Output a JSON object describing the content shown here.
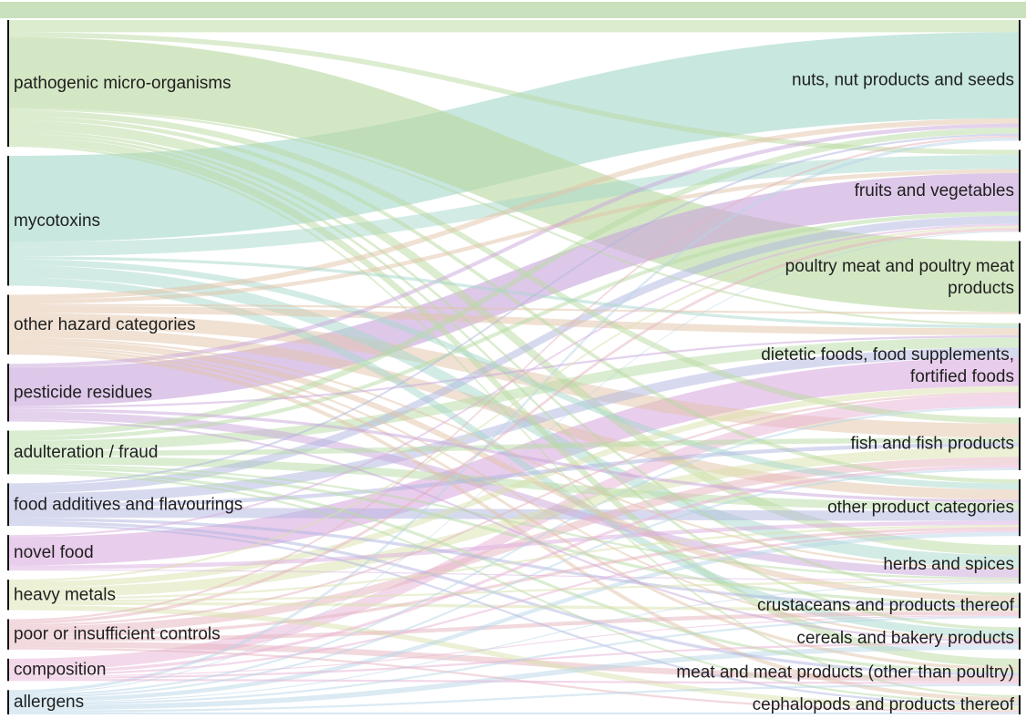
{
  "chart_data": {
    "type": "sankey",
    "left_nodes": [
      {
        "id": "pmo",
        "label": "pathogenic micro-organisms",
        "color": "#b9d9a0"
      },
      {
        "id": "myc",
        "label": "mycotoxins",
        "color": "#a6d8cb"
      },
      {
        "id": "oth",
        "label": "other hazard categories",
        "color": "#e2c4a8"
      },
      {
        "id": "pes",
        "label": "pesticide residues",
        "color": "#c9a6dc"
      },
      {
        "id": "adu",
        "label": "adulteration / fraud",
        "color": "#b5dca4"
      },
      {
        "id": "fad",
        "label": "food additives and flavourings",
        "color": "#b0b6e0"
      },
      {
        "id": "nov",
        "label": "novel food",
        "color": "#dcaee0"
      },
      {
        "id": "hvm",
        "label": "heavy metals",
        "color": "#d9e1ac"
      },
      {
        "id": "poc",
        "label": "poor or insufficient controls",
        "color": "#e6b3be"
      },
      {
        "id": "com",
        "label": "composition",
        "color": "#e8b2d6"
      },
      {
        "id": "all",
        "label": "allergens",
        "color": "#b8d6e8"
      }
    ],
    "right_nodes": [
      {
        "id": "nut",
        "label_lines": [
          "nuts, nut products and seeds"
        ],
        "color": "#a6d8cb"
      },
      {
        "id": "fru",
        "label_lines": [
          "fruits and vegetables"
        ],
        "color": "#c4acdf"
      },
      {
        "id": "pou",
        "label_lines": [
          "poultry meat and poultry meat",
          "products"
        ],
        "color": "#bfdca7"
      },
      {
        "id": "die",
        "label_lines": [
          "dietetic foods, food supplements,",
          "fortified foods"
        ],
        "color": "#dcb0de"
      },
      {
        "id": "fis",
        "label_lines": [
          "fish and fish products"
        ],
        "color": "#e2c3a6"
      },
      {
        "id": "opc",
        "label_lines": [
          "other product categories"
        ],
        "color": "#b5c6e2"
      },
      {
        "id": "her",
        "label_lines": [
          "herbs and spices"
        ],
        "color": "#bfe0c8"
      },
      {
        "id": "cru",
        "label_lines": [
          "crustaceans and products thereof"
        ],
        "color": "#e2c8a6"
      },
      {
        "id": "cer",
        "label_lines": [
          "cereals and bakery products"
        ],
        "color": "#bfe0d0"
      },
      {
        "id": "mea",
        "label_lines": [
          "meat and meat products (other than poultry)"
        ],
        "color": "#dcc0c8"
      },
      {
        "id": "cep",
        "label_lines": [
          "cephalopods and products thereof"
        ],
        "color": "#e0c8b0"
      }
    ],
    "flows": [
      [
        "pmo",
        "pou",
        70
      ],
      [
        "pmo",
        "nut",
        12
      ],
      [
        "pmo",
        "her",
        10
      ],
      [
        "pmo",
        "fis",
        6
      ],
      [
        "pmo",
        "mea",
        8
      ],
      [
        "pmo",
        "fru",
        5
      ],
      [
        "pmo",
        "opc",
        4
      ],
      [
        "pmo",
        "cer",
        3
      ],
      [
        "pmo",
        "cru",
        3
      ],
      [
        "pmo",
        "die",
        2
      ],
      [
        "pmo",
        "cep",
        2
      ],
      [
        "myc",
        "nut",
        85
      ],
      [
        "myc",
        "fru",
        14
      ],
      [
        "myc",
        "her",
        12
      ],
      [
        "myc",
        "cer",
        8
      ],
      [
        "myc",
        "opc",
        6
      ],
      [
        "myc",
        "die",
        3
      ],
      [
        "oth",
        "fis",
        14
      ],
      [
        "oth",
        "opc",
        10
      ],
      [
        "oth",
        "die",
        7
      ],
      [
        "oth",
        "cru",
        6
      ],
      [
        "oth",
        "nut",
        5
      ],
      [
        "oth",
        "fru",
        4
      ],
      [
        "oth",
        "cep",
        4
      ],
      [
        "oth",
        "mea",
        3
      ],
      [
        "oth",
        "her",
        2
      ],
      [
        "oth",
        "pou",
        2
      ],
      [
        "oth",
        "cer",
        2
      ],
      [
        "pes",
        "fru",
        38
      ],
      [
        "pes",
        "her",
        8
      ],
      [
        "pes",
        "nut",
        4
      ],
      [
        "pes",
        "opc",
        3
      ],
      [
        "pes",
        "die",
        2
      ],
      [
        "pes",
        "cer",
        2
      ],
      [
        "adu",
        "die",
        10
      ],
      [
        "adu",
        "opc",
        8
      ],
      [
        "adu",
        "nut",
        6
      ],
      [
        "adu",
        "fis",
        5
      ],
      [
        "adu",
        "fru",
        4
      ],
      [
        "adu",
        "cru",
        3
      ],
      [
        "adu",
        "mea",
        3
      ],
      [
        "adu",
        "cep",
        2
      ],
      [
        "adu",
        "her",
        2
      ],
      [
        "fad",
        "opc",
        10
      ],
      [
        "fad",
        "die",
        10
      ],
      [
        "fad",
        "fru",
        8
      ],
      [
        "fad",
        "fis",
        4
      ],
      [
        "fad",
        "cru",
        3
      ],
      [
        "fad",
        "mea",
        3
      ],
      [
        "fad",
        "cep",
        2
      ],
      [
        "fad",
        "nut",
        2
      ],
      [
        "nov",
        "die",
        28
      ],
      [
        "nov",
        "opc",
        4
      ],
      [
        "nov",
        "fru",
        2
      ],
      [
        "nov",
        "her",
        1
      ],
      [
        "hvm",
        "fis",
        10
      ],
      [
        "hvm",
        "die",
        6
      ],
      [
        "hvm",
        "cep",
        5
      ],
      [
        "hvm",
        "cru",
        3
      ],
      [
        "hvm",
        "fru",
        2
      ],
      [
        "hvm",
        "opc",
        2
      ],
      [
        "hvm",
        "her",
        2
      ],
      [
        "poc",
        "fis",
        8
      ],
      [
        "poc",
        "mea",
        6
      ],
      [
        "poc",
        "cru",
        4
      ],
      [
        "poc",
        "opc",
        3
      ],
      [
        "poc",
        "fru",
        3
      ],
      [
        "poc",
        "die",
        2
      ],
      [
        "poc",
        "nut",
        2
      ],
      [
        "poc",
        "cep",
        2
      ],
      [
        "com",
        "die",
        12
      ],
      [
        "com",
        "fis",
        3
      ],
      [
        "com",
        "opc",
        2
      ],
      [
        "com",
        "mea",
        2
      ],
      [
        "com",
        "cer",
        2
      ],
      [
        "com",
        "cru",
        1
      ],
      [
        "all",
        "cer",
        5
      ],
      [
        "all",
        "opc",
        4
      ],
      [
        "all",
        "nut",
        3
      ],
      [
        "all",
        "fis",
        2
      ],
      [
        "all",
        "die",
        2
      ],
      [
        "all",
        "mea",
        2
      ],
      [
        "all",
        "cru",
        2
      ],
      [
        "all",
        "cep",
        2
      ],
      [
        "all",
        "fru",
        1
      ],
      [
        "all",
        "her",
        1
      ]
    ]
  }
}
